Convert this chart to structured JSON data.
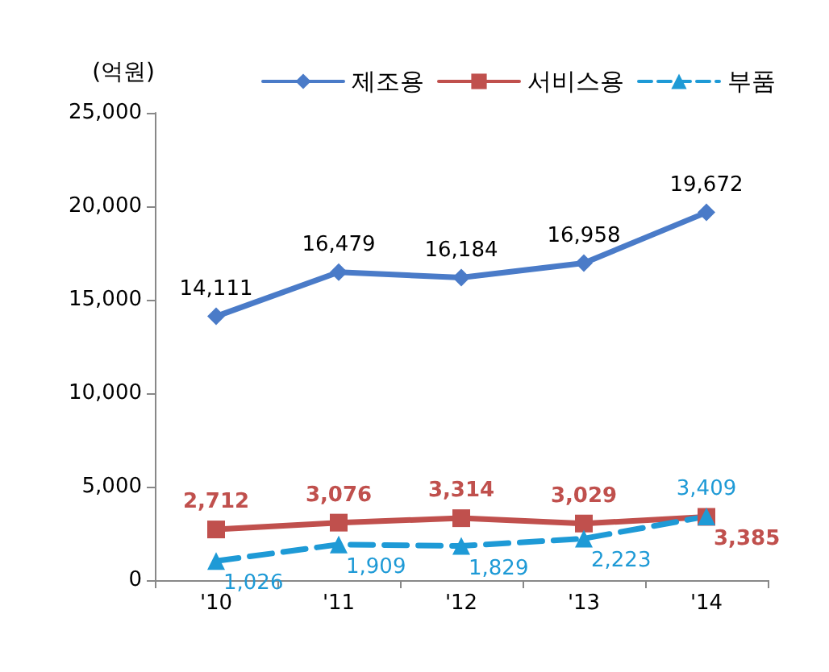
{
  "chart_data": {
    "type": "line",
    "ylabel": "(억원)",
    "categories": [
      "'10",
      "'11",
      "'12",
      "'13",
      "'14"
    ],
    "series": [
      {
        "name": "제조용",
        "color": "#4a7bc8",
        "marker": "diamond",
        "line_style": "solid",
        "values": [
          14111,
          16479,
          16184,
          16958,
          19672
        ],
        "value_labels": [
          "14,111",
          "16,479",
          "16,184",
          "16,958",
          "19,672"
        ]
      },
      {
        "name": "서비스용",
        "color": "#c0504d",
        "marker": "square",
        "line_style": "solid",
        "values": [
          2712,
          3076,
          3314,
          3029,
          3385
        ],
        "value_labels": [
          "2,712",
          "3,076",
          "3,314",
          "3,029",
          "3,385"
        ]
      },
      {
        "name": "부품",
        "color": "#1e9ad6",
        "marker": "triangle",
        "line_style": "dashed",
        "values": [
          1026,
          1909,
          1829,
          2223,
          3409
        ],
        "value_labels": [
          "1,026",
          "1,909",
          "1,829",
          "2,223",
          "3,409"
        ]
      }
    ],
    "ylim": [
      0,
      25000
    ],
    "yticks": [
      0,
      {
        "value": 5000,
        "label": "5,000"
      },
      {
        "value": 10000,
        "label": "10,000"
      },
      {
        "value": 15000,
        "label": "15,000"
      },
      {
        "value": 20000,
        "label": "20,000"
      },
      {
        "value": 25000,
        "label": "25,000"
      }
    ],
    "grid": false,
    "legend": "top right"
  }
}
